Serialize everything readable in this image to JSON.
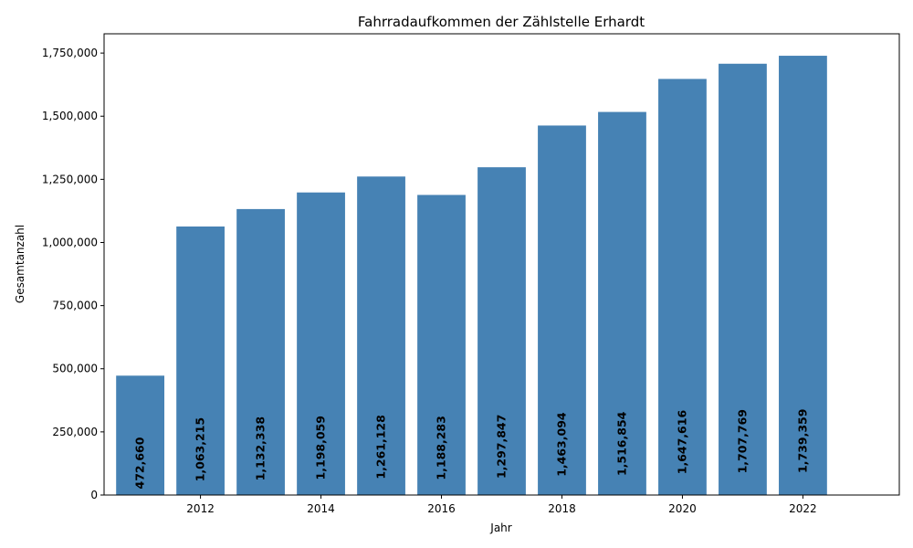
{
  "chart_data": {
    "type": "bar",
    "title": "Fahrradaufkommen der Zählstelle Erhardt",
    "xlabel": "Jahr",
    "ylabel": "Gesamtanzahl",
    "categories": [
      2011,
      2012,
      2013,
      2014,
      2015,
      2016,
      2017,
      2018,
      2019,
      2020,
      2021,
      2022
    ],
    "values": [
      472660,
      1063215,
      1132338,
      1198059,
      1261128,
      1188283,
      1297847,
      1463094,
      1516854,
      1647616,
      1707769,
      1739359
    ],
    "data_labels": [
      "472,660",
      "1,063,215",
      "1,132,338",
      "1,198,059",
      "1,261,128",
      "1,188,283",
      "1,297,847",
      "1,463,094",
      "1,516,854",
      "1,647,616",
      "1,707,769",
      "1,739,359"
    ],
    "bar_color": "#4682b4",
    "xlim": [
      2010.4,
      2023.6
    ],
    "ylim": [
      0,
      1826327
    ],
    "x_ticks": [
      2012,
      2014,
      2016,
      2018,
      2020,
      2022
    ],
    "x_tick_labels": [
      "2012",
      "2014",
      "2016",
      "2018",
      "2020",
      "2022"
    ],
    "y_ticks": [
      0,
      250000,
      500000,
      750000,
      1000000,
      1250000,
      1500000,
      1750000
    ],
    "y_tick_labels": [
      "0",
      "250,000",
      "500,000",
      "750,000",
      "1,000,000",
      "1,250,000",
      "1,500,000",
      "1,750,000"
    ],
    "grid": false,
    "legend": "none"
  }
}
